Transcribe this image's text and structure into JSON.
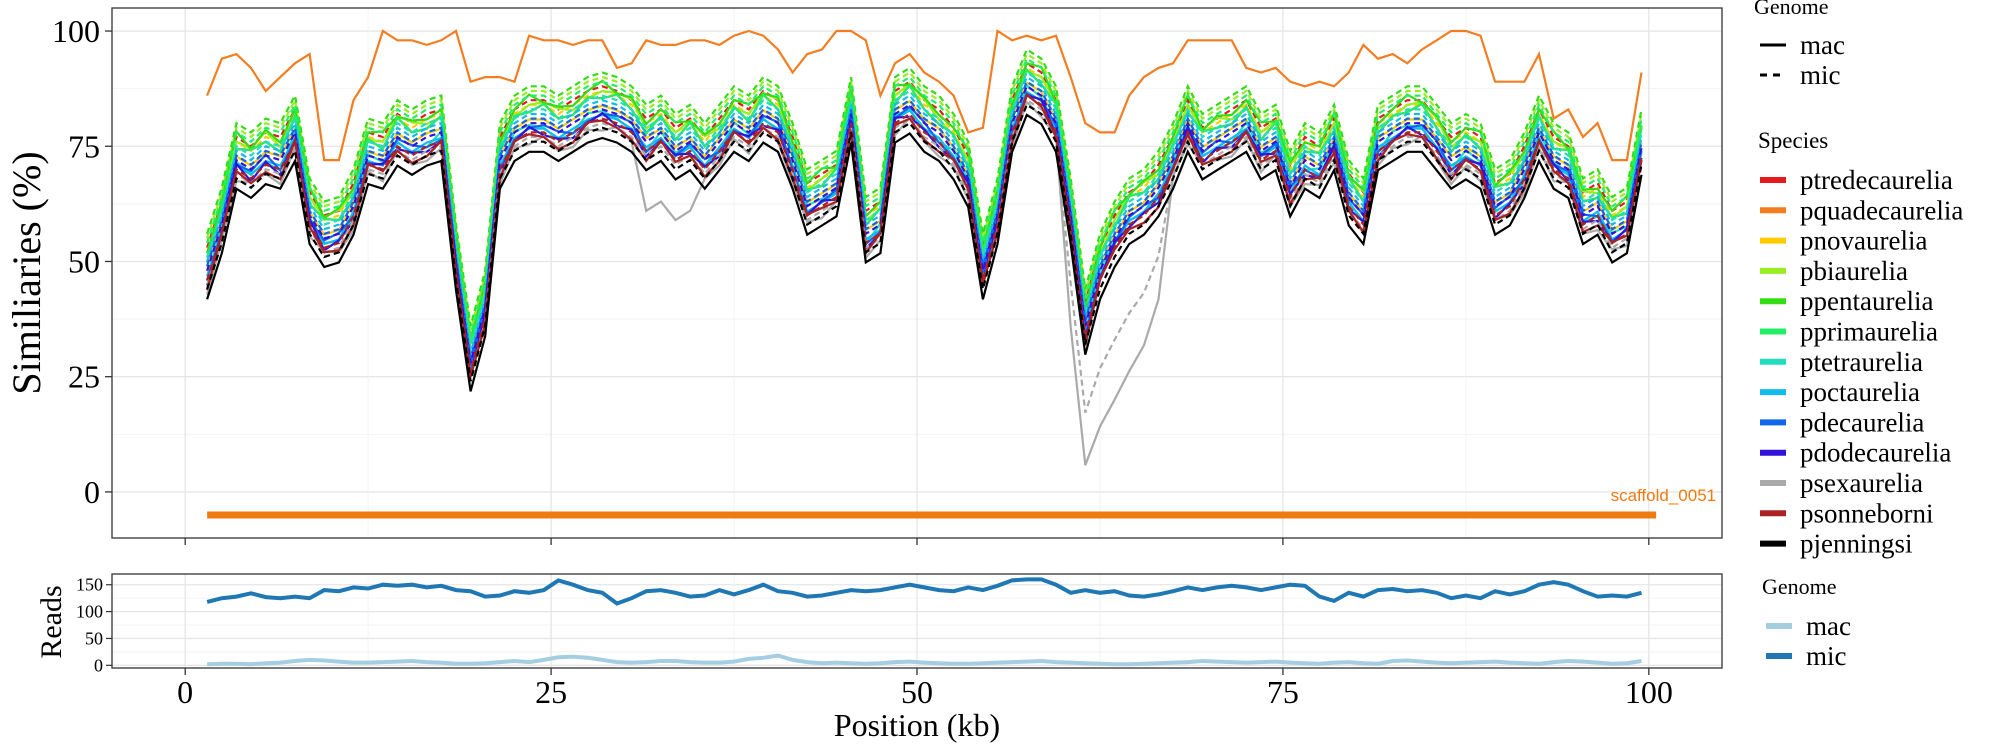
{
  "chart_data": [
    {
      "type": "line",
      "panel": "similarity",
      "ylabel": "Similiaries (%)",
      "xlim": [
        -5,
        105
      ],
      "ylim": [
        -10,
        105
      ],
      "yticks": [
        0,
        25,
        50,
        75,
        100
      ],
      "xticks_minor_only": [
        0,
        25,
        50,
        75,
        100
      ],
      "grid": true,
      "scaffold": {
        "label": "scaffold_0051",
        "x_start": 1.5,
        "x_end": 100.5,
        "y": -5,
        "color": "#ee7a12"
      },
      "x": [
        1.5,
        2.5,
        3.5,
        4.5,
        5.5,
        6.5,
        7.5,
        8.5,
        9.5,
        10.5,
        11.5,
        12.5,
        13.5,
        14.5,
        15.5,
        16.5,
        17.5,
        18.5,
        19.5,
        20.5,
        21.5,
        22.5,
        23.5,
        24.5,
        25.5,
        26.5,
        27.5,
        28.5,
        29.5,
        30.5,
        31.5,
        32.5,
        33.5,
        34.5,
        35.5,
        36.5,
        37.5,
        38.5,
        39.5,
        40.5,
        41.5,
        42.5,
        43.5,
        44.5,
        45.5,
        46.5,
        47.5,
        48.5,
        49.5,
        50.5,
        51.5,
        52.5,
        53.5,
        54.5,
        55.5,
        56.5,
        57.5,
        58.5,
        59.5,
        60.5,
        61.5,
        62.5,
        63.5,
        64.5,
        65.5,
        66.5,
        67.5,
        68.5,
        69.5,
        70.5,
        71.5,
        72.5,
        73.5,
        74.5,
        75.5,
        76.5,
        77.5,
        78.5,
        79.5,
        80.5,
        81.5,
        82.5,
        83.5,
        84.5,
        85.5,
        86.5,
        87.5,
        88.5,
        89.5,
        90.5,
        91.5,
        92.5,
        93.5,
        94.5,
        95.5,
        96.5,
        97.5,
        98.5,
        99.5
      ],
      "baseline": [
        48,
        58,
        72,
        70,
        73,
        72,
        78,
        60,
        55,
        56,
        62,
        73,
        72,
        77,
        75,
        77,
        78,
        50,
        28,
        40,
        72,
        78,
        80,
        80,
        78,
        80,
        82,
        83,
        82,
        80,
        76,
        78,
        74,
        76,
        72,
        76,
        80,
        78,
        82,
        80,
        72,
        62,
        64,
        66,
        82,
        56,
        58,
        82,
        84,
        80,
        78,
        74,
        68,
        48,
        60,
        80,
        88,
        86,
        80,
        60,
        36,
        48,
        55,
        60,
        62,
        66,
        72,
        80,
        74,
        76,
        78,
        80,
        74,
        76,
        66,
        72,
        70,
        76,
        64,
        60,
        76,
        78,
        80,
        80,
        76,
        72,
        74,
        72,
        62,
        64,
        70,
        78,
        72,
        70,
        60,
        62,
        56,
        58,
        75
      ],
      "series": [
        {
          "name": "ptredecaurelia",
          "color": "#e41a1c",
          "offset": 3,
          "mic_offset": 5
        },
        {
          "name": "pquadecaurelia",
          "color": "#f47d20",
          "offset": 0,
          "mic_offset": 0,
          "custom": [
            86,
            94,
            95,
            92,
            87,
            90,
            93,
            95,
            72,
            72,
            85,
            90,
            100,
            98,
            98,
            97,
            98,
            100,
            89,
            90,
            90,
            89,
            99,
            98,
            98,
            97,
            98,
            98,
            92,
            93,
            98,
            97,
            97,
            98,
            98,
            97,
            99,
            100,
            99,
            96,
            91,
            95,
            96,
            100,
            100,
            98,
            86,
            93,
            95,
            91,
            89,
            86,
            78,
            79,
            100,
            98,
            99,
            98,
            99,
            90,
            80,
            78,
            78,
            86,
            90,
            92,
            93,
            98,
            98,
            98,
            98,
            92,
            91,
            92,
            89,
            88,
            89,
            88,
            91,
            97,
            94,
            95,
            93,
            96,
            98,
            100,
            100,
            99,
            89,
            89,
            89,
            95,
            81,
            83,
            77,
            80,
            72,
            72,
            91
          ]
        },
        {
          "name": "pnovaurelia",
          "color": "#ffcc00",
          "offset": 2,
          "mic_offset": 4
        },
        {
          "name": "pbiaurelia",
          "color": "#99ee22",
          "offset": 4,
          "mic_offset": 7
        },
        {
          "name": "ppentaurelia",
          "color": "#33dd11",
          "offset": 5,
          "mic_offset": 8
        },
        {
          "name": "pprimaurelia",
          "color": "#22ee66",
          "offset": 3,
          "mic_offset": 6
        },
        {
          "name": "ptetraurelia",
          "color": "#22ddbb",
          "offset": -1,
          "mic_offset": 3
        },
        {
          "name": "poctaurelia",
          "color": "#11bbee",
          "offset": 0,
          "mic_offset": 2
        },
        {
          "name": "pdecaurelia",
          "color": "#1166ee",
          "offset": -1,
          "mic_offset": 1
        },
        {
          "name": "pdodecaurelia",
          "color": "#3311dd",
          "offset": -2,
          "mic_offset": 0
        },
        {
          "name": "psexaurelia",
          "color": "#aaaaaa",
          "offset": -4,
          "mic_offset": -3
        },
        {
          "name": "psonneborni",
          "color": "#aa2222",
          "offset": -3,
          "mic_offset": -2
        },
        {
          "name": "pjenningsi",
          "color": "#000000",
          "offset": -5,
          "mic_offset": -4
        }
      ]
    },
    {
      "type": "line",
      "panel": "reads",
      "xlabel": "Position (kb)",
      "ylabel": "Reads",
      "xlim": [
        -5,
        105
      ],
      "ylim": [
        -5,
        170
      ],
      "xticks": [
        0,
        25,
        50,
        75,
        100
      ],
      "yticks": [
        0,
        50,
        100,
        150
      ],
      "grid": true,
      "x": [
        1.5,
        2.5,
        3.5,
        4.5,
        5.5,
        6.5,
        7.5,
        8.5,
        9.5,
        10.5,
        11.5,
        12.5,
        13.5,
        14.5,
        15.5,
        16.5,
        17.5,
        18.5,
        19.5,
        20.5,
        21.5,
        22.5,
        23.5,
        24.5,
        25.5,
        26.5,
        27.5,
        28.5,
        29.5,
        30.5,
        31.5,
        32.5,
        33.5,
        34.5,
        35.5,
        36.5,
        37.5,
        38.5,
        39.5,
        40.5,
        41.5,
        42.5,
        43.5,
        44.5,
        45.5,
        46.5,
        47.5,
        48.5,
        49.5,
        50.5,
        51.5,
        52.5,
        53.5,
        54.5,
        55.5,
        56.5,
        57.5,
        58.5,
        59.5,
        60.5,
        61.5,
        62.5,
        63.5,
        64.5,
        65.5,
        66.5,
        67.5,
        68.5,
        69.5,
        70.5,
        71.5,
        72.5,
        73.5,
        74.5,
        75.5,
        76.5,
        77.5,
        78.5,
        79.5,
        80.5,
        81.5,
        82.5,
        83.5,
        84.5,
        85.5,
        86.5,
        87.5,
        88.5,
        89.5,
        90.5,
        91.5,
        92.5,
        93.5,
        94.5,
        95.5,
        96.5,
        97.5,
        98.5,
        99.5
      ],
      "series": [
        {
          "name": "mac",
          "color": "#a6cee3",
          "values": [
            2,
            3,
            3,
            2,
            4,
            5,
            8,
            10,
            9,
            7,
            5,
            5,
            6,
            7,
            8,
            6,
            5,
            3,
            3,
            4,
            6,
            8,
            6,
            10,
            15,
            16,
            14,
            10,
            6,
            5,
            6,
            8,
            8,
            6,
            5,
            5,
            7,
            12,
            14,
            18,
            10,
            6,
            4,
            5,
            4,
            3,
            4,
            6,
            7,
            5,
            4,
            3,
            3,
            4,
            5,
            6,
            7,
            8,
            6,
            5,
            4,
            3,
            2,
            2,
            3,
            4,
            5,
            6,
            8,
            7,
            6,
            5,
            6,
            7,
            5,
            4,
            3,
            5,
            6,
            4,
            3,
            8,
            9,
            7,
            5,
            4,
            5,
            6,
            7,
            5,
            4,
            3,
            6,
            8,
            7,
            5,
            3,
            4,
            8
          ]
        },
        {
          "name": "mic",
          "color": "#1f78b4",
          "values": [
            118,
            125,
            128,
            134,
            127,
            125,
            128,
            125,
            140,
            138,
            145,
            143,
            150,
            148,
            150,
            145,
            148,
            140,
            138,
            128,
            130,
            138,
            135,
            140,
            158,
            150,
            140,
            135,
            115,
            125,
            138,
            140,
            135,
            128,
            130,
            140,
            132,
            140,
            150,
            138,
            135,
            128,
            130,
            135,
            140,
            138,
            140,
            145,
            150,
            145,
            140,
            138,
            145,
            140,
            148,
            158,
            160,
            160,
            150,
            135,
            140,
            135,
            138,
            130,
            128,
            132,
            138,
            145,
            140,
            145,
            148,
            145,
            140,
            145,
            150,
            148,
            128,
            120,
            135,
            128,
            140,
            142,
            138,
            140,
            135,
            125,
            130,
            125,
            138,
            132,
            138,
            150,
            155,
            150,
            138,
            128,
            130,
            128,
            135
          ]
        }
      ]
    }
  ],
  "legends": {
    "genome_top": {
      "title": "Genome",
      "items": [
        {
          "label": "mac",
          "dash": "solid"
        },
        {
          "label": "mic",
          "dash": "dashed"
        }
      ]
    },
    "species": {
      "title": "Species"
    },
    "genome_bottom": {
      "title": "Genome",
      "items": [
        {
          "label": "mac",
          "color": "#a6cee3"
        },
        {
          "label": "mic",
          "color": "#1f78b4"
        }
      ]
    }
  }
}
